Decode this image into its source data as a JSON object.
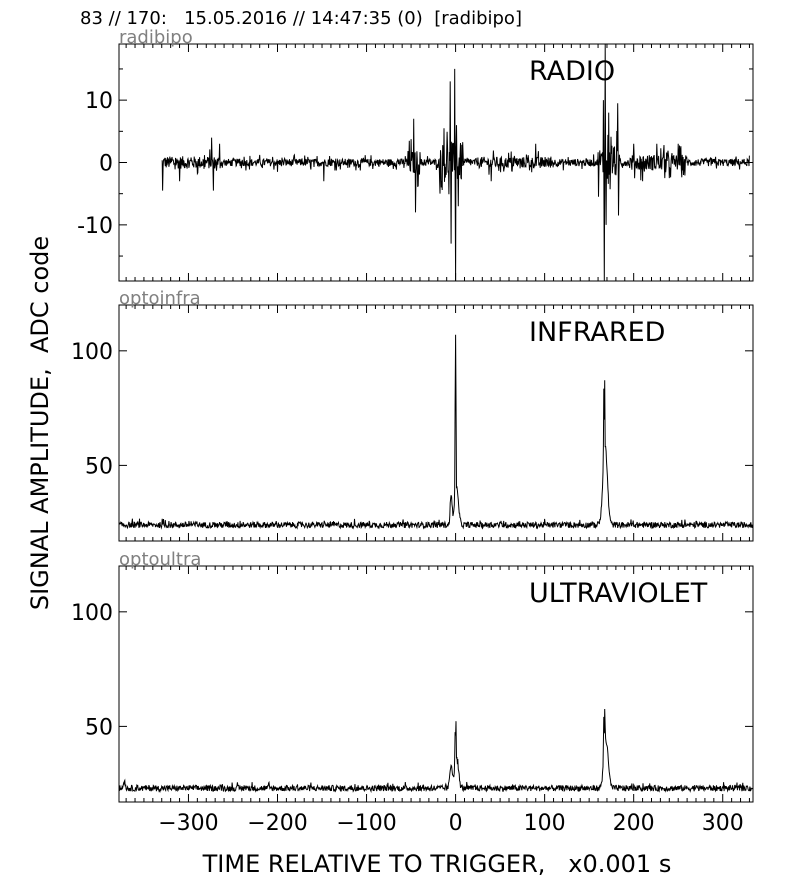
{
  "header": {
    "text": "83 // 170:   15.05.2016 // 14:47:35 (0)  [radibipo]"
  },
  "chart_data": {
    "type": "line",
    "xlabel": "TIME RELATIVE TO TRIGGER,   x0.001 s",
    "ylabel": "SIGNAL AMPLITUDE,  ADC code",
    "xlim": [
      -378,
      334
    ],
    "xticks": [
      -300,
      -200,
      -100,
      0,
      100,
      200,
      300
    ],
    "xtick_labels": [
      "−300",
      "−200",
      "−100",
      "0",
      "100",
      "200",
      "300"
    ],
    "panels": [
      {
        "channel": "radibipo",
        "label": "RADIO",
        "ylim": [
          -19,
          19
        ],
        "yticks": [
          10,
          0,
          -10
        ],
        "ytick_labels": [
          "10",
          "0",
          "-10"
        ],
        "baseline": 0,
        "x_start": -330,
        "x_end": 330,
        "noise": 0.6,
        "spikes": [
          {
            "x": -329,
            "value": 4
          },
          {
            "x": -329,
            "value": -4.5
          },
          {
            "x": -310,
            "value": 6
          },
          {
            "x": -310,
            "value": -3
          },
          {
            "x": -274,
            "value": 4
          },
          {
            "x": -272,
            "value": -4.5
          },
          {
            "x": -265,
            "value": 3
          },
          {
            "x": -200,
            "value": -1.5
          },
          {
            "x": -148,
            "value": -3
          },
          {
            "x": -52,
            "value": 3.5
          },
          {
            "x": -47,
            "value": 7
          },
          {
            "x": -45,
            "value": -8
          },
          {
            "x": -16,
            "value": -4
          },
          {
            "x": -13,
            "value": 5.5
          },
          {
            "x": -6,
            "value": 13
          },
          {
            "x": -5,
            "value": -13
          },
          {
            "x": -1,
            "value": 15
          },
          {
            "x": 0,
            "value": -19
          },
          {
            "x": 1,
            "value": 6
          },
          {
            "x": 3,
            "value": -7
          },
          {
            "x": 40,
            "value": -3
          },
          {
            "x": 90,
            "value": 3
          },
          {
            "x": 166,
            "value": 10
          },
          {
            "x": 167,
            "value": -19
          },
          {
            "x": 168,
            "value": 19
          },
          {
            "x": 169,
            "value": -10
          },
          {
            "x": 172,
            "value": 8
          },
          {
            "x": 182,
            "value": 9.5
          },
          {
            "x": 183,
            "value": -8.5
          },
          {
            "x": 200,
            "value": 3
          },
          {
            "x": 210,
            "value": -3
          },
          {
            "x": 226,
            "value": 3
          },
          {
            "x": 240,
            "value": -2.5
          },
          {
            "x": 250,
            "value": 3
          },
          {
            "x": 256,
            "value": -2
          }
        ],
        "bursts": [
          {
            "x0": -330,
            "x1": -265,
            "amp": 1.0
          },
          {
            "x0": -55,
            "x1": -40,
            "amp": 2.0
          },
          {
            "x0": -18,
            "x1": 8,
            "amp": 3.2
          },
          {
            "x0": 25,
            "x1": 110,
            "amp": 0.9
          },
          {
            "x0": 160,
            "x1": 185,
            "amp": 2.5
          },
          {
            "x0": 195,
            "x1": 260,
            "amp": 1.3
          }
        ]
      },
      {
        "channel": "optoinfra",
        "label": "INFRARED",
        "ylim": [
          17,
          120
        ],
        "yticks": [
          100,
          50
        ],
        "ytick_labels": [
          "100",
          "50"
        ],
        "baseline": 24,
        "x_start": -378,
        "x_end": 334,
        "noise": 1.3,
        "peaks": [
          {
            "x": -5,
            "value": 37,
            "width": 1.5
          },
          {
            "x": 0,
            "value": 107,
            "width": 0.6
          },
          {
            "x": 1,
            "value": 40,
            "width": 3
          },
          {
            "x": 167,
            "value": 70,
            "width": 0.8
          },
          {
            "x": 168,
            "value": 58,
            "width": 3.5
          }
        ]
      },
      {
        "channel": "optoultra",
        "label": "ULTRAVIOLET",
        "ylim": [
          17,
          120
        ],
        "yticks": [
          100,
          50
        ],
        "ytick_labels": [
          "100",
          "50"
        ],
        "baseline": 23,
        "x_start": -378,
        "x_end": 334,
        "noise": 1.3,
        "peaks": [
          {
            "x": -372,
            "value": 26,
            "width": 1.5
          },
          {
            "x": -5,
            "value": 33,
            "width": 2
          },
          {
            "x": 0,
            "value": 46,
            "width": 0.8
          },
          {
            "x": 1,
            "value": 36,
            "width": 3
          },
          {
            "x": 167,
            "value": 47,
            "width": 1
          },
          {
            "x": 169,
            "value": 43,
            "width": 3.5
          }
        ]
      }
    ]
  }
}
